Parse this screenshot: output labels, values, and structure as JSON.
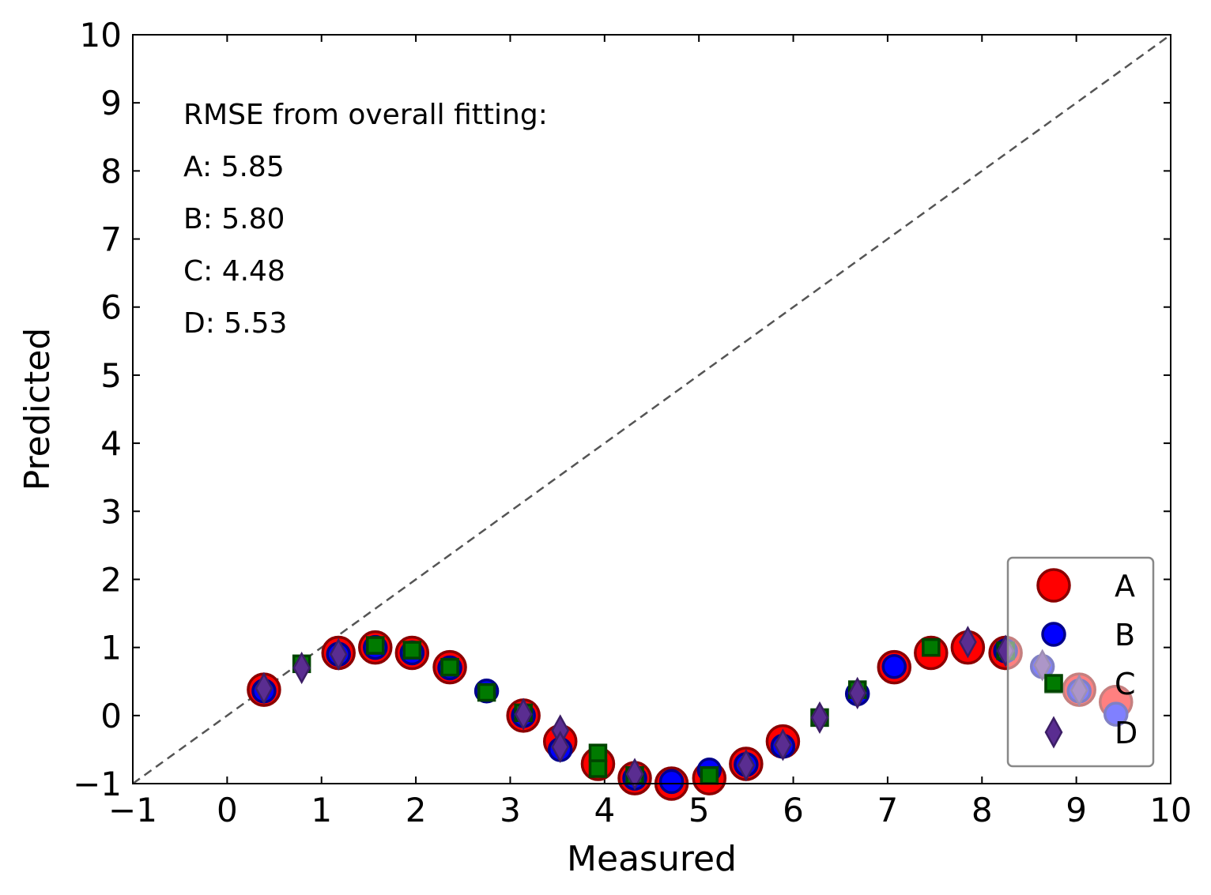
{
  "chart_data": {
    "type": "scatter",
    "xlabel": "Measured",
    "ylabel": "Predicted",
    "xlim": [
      -1,
      10
    ],
    "ylim": [
      -1,
      10
    ],
    "xticks": [
      -1,
      0,
      1,
      2,
      3,
      4,
      5,
      6,
      7,
      8,
      9,
      10
    ],
    "yticks": [
      -1,
      0,
      1,
      2,
      3,
      4,
      5,
      6,
      7,
      8,
      9,
      10
    ],
    "xtick_labels": [
      "−1",
      "0",
      "1",
      "2",
      "3",
      "4",
      "5",
      "6",
      "7",
      "8",
      "9",
      "10"
    ],
    "ytick_labels": [
      "−1",
      "0",
      "1",
      "2",
      "3",
      "4",
      "5",
      "6",
      "7",
      "8",
      "9",
      "10"
    ],
    "reference_line": {
      "from": [
        -1,
        -1
      ],
      "to": [
        10,
        10
      ],
      "style": "dashed",
      "color": "#555555"
    },
    "annotations": [
      "RMSE from overall fitting:",
      "A: 5.85",
      "B: 5.80",
      "C: 4.48",
      "D: 5.53"
    ],
    "legend": {
      "position": "bottom-right"
    },
    "series": [
      {
        "name": "A",
        "marker": "circle",
        "color": "#ff0000",
        "edge": "#8b0000",
        "x": [
          0.39,
          1.18,
          1.57,
          1.96,
          2.36,
          3.14,
          3.53,
          3.93,
          4.32,
          4.71,
          5.11,
          5.5,
          5.89,
          7.07,
          7.46,
          7.85,
          8.25,
          9.03,
          9.42
        ],
        "y": [
          0.38,
          0.92,
          1.0,
          0.92,
          0.71,
          0.0,
          -0.38,
          -0.71,
          -0.92,
          -1.0,
          -0.92,
          -0.71,
          -0.38,
          0.71,
          0.92,
          1.0,
          0.92,
          0.38,
          0.2
        ]
      },
      {
        "name": "B",
        "marker": "circle",
        "color": "#0000ff",
        "edge": "#00008b",
        "x": [
          0.39,
          1.18,
          1.57,
          1.96,
          2.36,
          2.75,
          3.14,
          3.53,
          4.32,
          4.71,
          5.11,
          5.5,
          5.89,
          6.68,
          7.07,
          8.25,
          8.64,
          9.03,
          9.42
        ],
        "y": [
          0.36,
          0.9,
          1.0,
          0.92,
          0.7,
          0.36,
          0.0,
          -0.5,
          -0.92,
          -0.97,
          -0.8,
          -0.72,
          -0.45,
          0.32,
          0.72,
          0.95,
          0.72,
          0.36,
          0.02
        ]
      },
      {
        "name": "C",
        "marker": "square",
        "color": "#007a00",
        "edge": "#004400",
        "x": [
          0.79,
          1.57,
          1.96,
          2.36,
          2.75,
          3.14,
          3.93,
          3.93,
          4.32,
          5.11,
          6.28,
          6.68,
          7.46,
          8.25,
          8.76
        ],
        "y": [
          0.76,
          1.03,
          0.96,
          0.71,
          0.34,
          0.04,
          -0.55,
          -0.78,
          -0.88,
          -0.88,
          -0.03,
          0.38,
          1.0,
          0.95,
          0.46
        ]
      },
      {
        "name": "D",
        "marker": "diamond",
        "color": "#5a2d91",
        "edge": "#3c1e66",
        "x": [
          0.39,
          0.79,
          1.18,
          3.14,
          3.53,
          3.53,
          4.32,
          5.5,
          5.89,
          6.28,
          6.68,
          7.85,
          8.25,
          8.64,
          9.03
        ],
        "y": [
          0.4,
          0.7,
          0.9,
          0.02,
          -0.22,
          -0.46,
          -0.86,
          -0.73,
          -0.43,
          -0.03,
          0.33,
          1.08,
          0.95,
          0.74,
          0.37
        ]
      }
    ]
  }
}
